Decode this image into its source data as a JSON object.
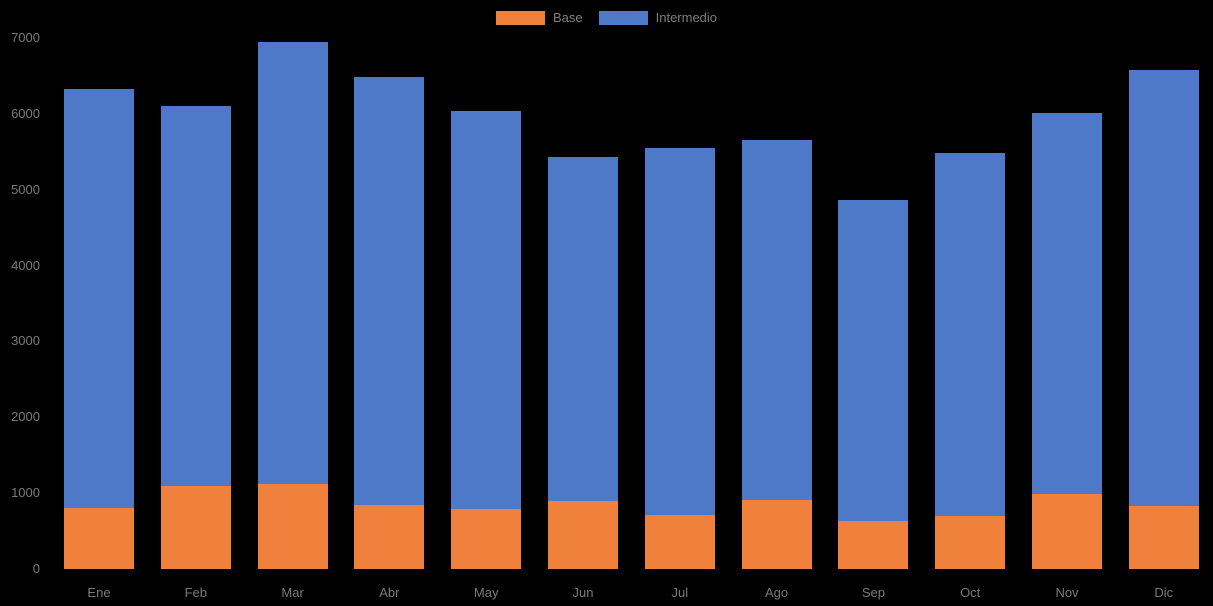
{
  "legend": {
    "items": [
      {
        "label": "Base",
        "color": "#F0813C"
      },
      {
        "label": "Intermedio",
        "color": "#4E78C8"
      }
    ]
  },
  "chart_data": {
    "type": "bar",
    "stacked": true,
    "title": "",
    "xlabel": "",
    "ylabel": "",
    "categories": [
      "Ene",
      "Feb",
      "Mar",
      "Abr",
      "May",
      "Jun",
      "Jul",
      "Ago",
      "Sep",
      "Oct",
      "Nov",
      "Dic"
    ],
    "series": [
      {
        "name": "Base",
        "color": "#F0813C",
        "values": [
          810,
          1090,
          1120,
          850,
          785,
          895,
          710,
          905,
          635,
          700,
          985,
          835
        ]
      },
      {
        "name": "Intermedio",
        "color": "#4E78C8",
        "values": [
          5520,
          5020,
          5830,
          5630,
          5255,
          4535,
          4840,
          4755,
          4225,
          4790,
          5025,
          5745
        ]
      }
    ],
    "totals": [
      6330,
      6110,
      6950,
      6480,
      6040,
      5430,
      5550,
      5660,
      4860,
      5490,
      6010,
      6580
    ],
    "ylim": [
      0,
      7000
    ],
    "yticks": [
      0,
      1000,
      2000,
      3000,
      4000,
      5000,
      6000,
      7000
    ],
    "grid": false,
    "legend_position": "top-center",
    "colors": {
      "background": "#000000",
      "text": "#7A7A7A",
      "base_series": "#F0813C",
      "intermedio_series": "#4E78C8"
    }
  }
}
